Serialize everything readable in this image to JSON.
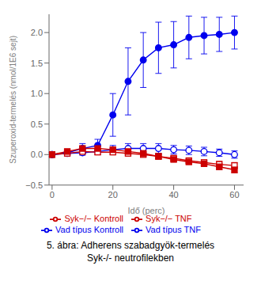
{
  "chart_data": {
    "type": "line",
    "xlabel": "Idő (perc)",
    "ylabel": "Szuperoxid-termelés (nmol/1E6 sejt)",
    "x": [
      0,
      5,
      10,
      15,
      20,
      25,
      30,
      35,
      40,
      45,
      50,
      55,
      60
    ],
    "series": [
      {
        "name": "Vad típus Kontroll",
        "color": "#0000EE",
        "marker": "open_circle",
        "values": [
          0,
          0.02,
          0.03,
          0.05,
          0.08,
          0.1,
          0.1,
          0.1,
          0.08,
          0.07,
          0.05,
          0.03,
          0.0
        ],
        "errors": [
          0.04,
          0.04,
          0.04,
          0.05,
          0.07,
          0.08,
          0.08,
          0.08,
          0.07,
          0.07,
          0.07,
          0.06,
          0.06
        ]
      },
      {
        "name": "Vad típus TNF",
        "color": "#0000EE",
        "marker": "circle",
        "values": [
          0,
          0.03,
          0.1,
          0.15,
          0.65,
          1.2,
          1.55,
          1.75,
          1.8,
          1.92,
          1.95,
          1.97,
          2.0
        ],
        "errors": [
          0.04,
          0.04,
          0.08,
          0.1,
          0.35,
          0.55,
          0.45,
          0.42,
          0.38,
          0.35,
          0.3,
          0.28,
          0.27
        ]
      },
      {
        "name": "Syk−/− Kontroll",
        "color": "#CC0000",
        "marker": "open_square",
        "values": [
          0,
          0.02,
          0.05,
          0.04,
          0.04,
          0.02,
          0.0,
          -0.03,
          -0.06,
          -0.1,
          -0.13,
          -0.16,
          -0.18
        ],
        "errors": [
          0.03,
          0.04,
          0.04,
          0.04,
          0.04,
          0.04,
          0.04,
          0.04,
          0.04,
          0.04,
          0.04,
          0.05,
          0.05
        ]
      },
      {
        "name": "Syk−/− TNF",
        "color": "#CC0000",
        "marker": "square",
        "values": [
          0,
          0.05,
          0.1,
          0.1,
          0.08,
          0.05,
          0.02,
          -0.03,
          -0.08,
          -0.12,
          -0.15,
          -0.2,
          -0.25
        ],
        "errors": [
          0.03,
          0.04,
          0.04,
          0.04,
          0.04,
          0.04,
          0.04,
          0.04,
          0.04,
          0.04,
          0.04,
          0.05,
          0.05
        ]
      }
    ],
    "xlim": [
      -1,
      63
    ],
    "ylim": [
      -0.5,
      2.3
    ],
    "xticks": [
      0,
      20,
      40,
      60
    ],
    "yticks": [
      {
        "value": -0.5,
        "label": "−0.5"
      },
      {
        "value": 0,
        "label": "0.0"
      },
      0.5,
      {
        "value": 1.0,
        "label": "1.0"
      },
      1.5,
      {
        "value": 2.0,
        "label": "2.0"
      }
    ],
    "grid": false,
    "legend": "bottom",
    "annotations": [
      "5. ábra: Adherens szabadgyök-termelés",
      "Syk-/- neutrofilekben"
    ]
  }
}
